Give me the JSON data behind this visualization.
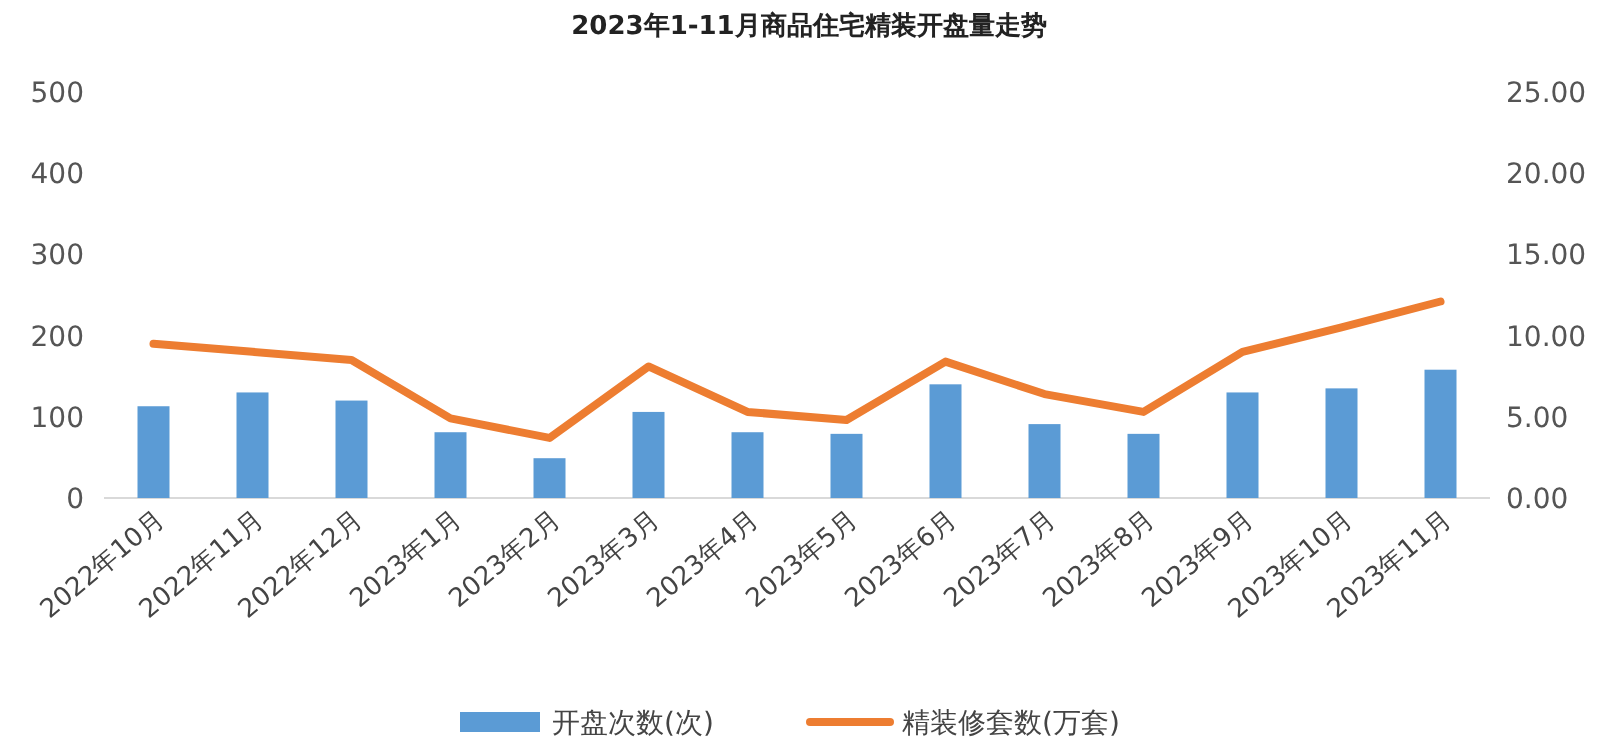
{
  "chart_data": {
    "type": "bar",
    "title": "2023年1-11月商品住宅精装开盘量走势",
    "categories": [
      "2022年10月",
      "2022年11月",
      "2022年12月",
      "2023年1月",
      "2023年2月",
      "2023年3月",
      "2023年4月",
      "2023年5月",
      "2023年6月",
      "2023年7月",
      "2023年8月",
      "2023年9月",
      "2023年10月",
      "2023年11月"
    ],
    "series": [
      {
        "name": "开盘次数(次)",
        "color": "#5b9bd5",
        "values": [
          113,
          130,
          120,
          81,
          49,
          106,
          81,
          79,
          140,
          91,
          79,
          130,
          135,
          158
        ]
      },
      {
        "name": "精装修套数(万套)",
        "type": "line",
        "axis": "y2",
        "color": "#ed7d31",
        "values": [
          9.5,
          9.0,
          8.5,
          4.9,
          3.7,
          8.1,
          5.3,
          4.8,
          8.4,
          6.4,
          5.3,
          9.0,
          10.5,
          12.1
        ]
      }
    ],
    "ylim": [
      0,
      500
    ],
    "yticks": [
      0,
      100,
      200,
      300,
      400,
      500
    ],
    "y2lim": [
      0,
      25
    ],
    "y2ticks": [
      {
        "value": 0,
        "label": "0.00"
      },
      {
        "value": 5,
        "label": "5.00"
      },
      {
        "value": 10,
        "label": "10.00"
      },
      {
        "value": 15,
        "label": "15.00"
      },
      {
        "value": 20,
        "label": "20.00"
      },
      {
        "value": 25,
        "label": "25.00"
      }
    ],
    "legend": "bottom"
  }
}
